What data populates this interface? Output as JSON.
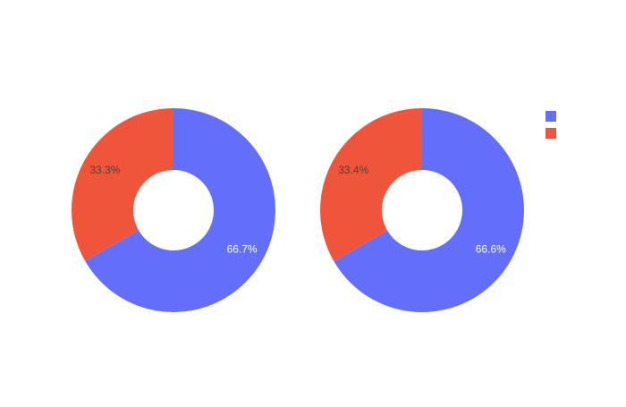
{
  "chart_data": [
    {
      "type": "pie",
      "hole": true,
      "slices": [
        {
          "value": 66.7,
          "label": "66.7%",
          "color": "#636efa",
          "label_color": "#ffffff"
        },
        {
          "value": 33.3,
          "label": "33.3%",
          "color": "#ef553b",
          "label_color": "#444444"
        }
      ]
    },
    {
      "type": "pie",
      "hole": true,
      "slices": [
        {
          "value": 66.6,
          "label": "66.6%",
          "color": "#636efa",
          "label_color": "#ffffff"
        },
        {
          "value": 33.4,
          "label": "33.4%",
          "color": "#ef553b",
          "label_color": "#444444"
        }
      ]
    }
  ],
  "legend": {
    "placement": "top-right",
    "items": [
      {
        "name": "",
        "color": "#636efa"
      },
      {
        "name": "",
        "color": "#ef553b"
      }
    ]
  }
}
